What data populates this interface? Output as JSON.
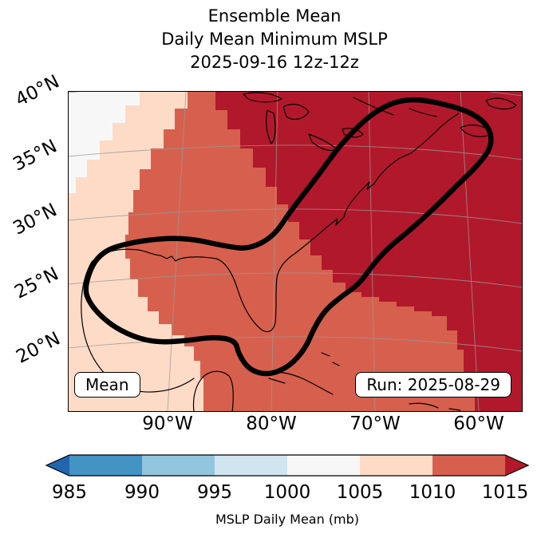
{
  "title": {
    "line1": "Ensemble Mean",
    "line2": "Daily Mean Minimum MSLP",
    "line3": "2025-09-16 12z-12z"
  },
  "map": {
    "lat_ticks": [
      "40°N",
      "35°N",
      "30°N",
      "25°N",
      "20°N"
    ],
    "lon_ticks": [
      "90°W",
      "80°W",
      "70°W",
      "60°W"
    ],
    "mean_label": "Mean",
    "run_label": "Run: 2025-08-29"
  },
  "colorbar": {
    "ticks": [
      "985",
      "990",
      "995",
      "1000",
      "1005",
      "1010",
      "1015"
    ],
    "label": "MSLP Daily Mean (mb)"
  },
  "colors": {
    "under_arrow": "#2166ac",
    "seg_985_990": "#4393c3",
    "seg_990_995": "#92c5de",
    "seg_995_1000": "#d1e5f0",
    "seg_1000_1005": "#f7f7f7",
    "seg_1005_1010": "#fddbc7",
    "seg_1010_1015": "#d6604d",
    "over_arrow": "#b2182b",
    "grid": "#999999",
    "coast": "#000000",
    "contour": "#000000"
  },
  "chart_data": {
    "type": "heatmap",
    "title": "Ensemble Mean Daily Mean Minimum MSLP 2025-09-16 12z-12z",
    "x_ticks": [
      "90°W",
      "80°W",
      "70°W",
      "60°W"
    ],
    "y_ticks": [
      "40°N",
      "35°N",
      "30°N",
      "25°N",
      "20°N"
    ],
    "colorbar": {
      "label": "MSLP Daily Mean (mb)",
      "ticks": [
        985,
        990,
        995,
        1000,
        1005,
        1010,
        1015
      ],
      "extend": "both",
      "segment_colors": [
        "#4393c3",
        "#92c5de",
        "#d1e5f0",
        "#f7f7f7",
        "#fddbc7",
        "#d6604d"
      ],
      "under_color": "#2166ac",
      "over_color": "#b2182b"
    },
    "regions_shown": [
      {
        "range": "1000-1005 mb",
        "location": "far northwest corner of map"
      },
      {
        "range": "1005-1010 mb",
        "location": "western band and lower-left (Texas/Mexico)"
      },
      {
        "range": "1010-1015 mb",
        "location": "central Gulf of Mexico and southeast U.S."
      },
      {
        "range": "over 1015 mb",
        "location": "northeast quadrant and western Atlantic"
      }
    ],
    "annotations": [
      "Mean",
      "Run: 2025-08-29"
    ],
    "overlay": "thick black closed contour outlining Gulf coast and U.S. East Coast up to the Canadian Maritimes"
  }
}
